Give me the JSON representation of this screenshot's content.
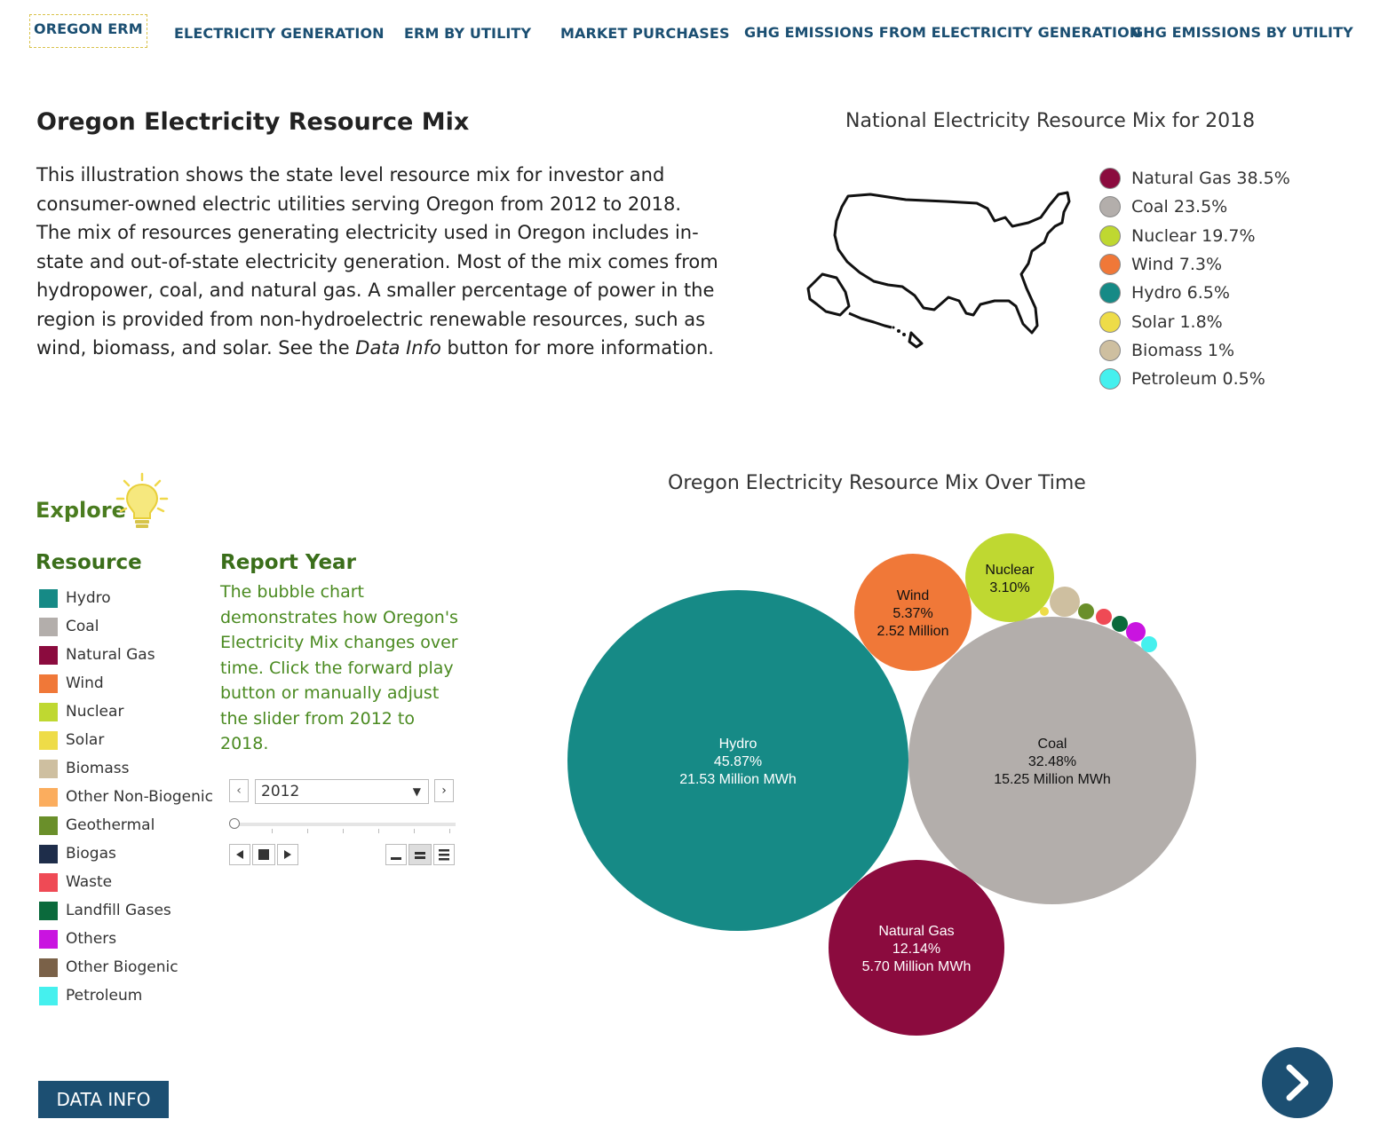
{
  "nav": {
    "tabs": [
      {
        "label": "OREGON ERM"
      },
      {
        "label": "ELECTRICITY GENERATION"
      },
      {
        "label": "ERM BY UTILITY"
      },
      {
        "label": "MARKET PURCHASES"
      },
      {
        "label": "GHG EMISSIONS FROM ELECTRICITY GENERATION"
      },
      {
        "label": "GHG EMISSIONS BY UTILITY"
      }
    ]
  },
  "intro": {
    "title": "Oregon Electricity Resource Mix",
    "text_before": "This illustration shows the state level resource mix for investor and consumer-owned electric utilities serving Oregon from 2012 to 2018. The mix of resources generating electricity used in Oregon includes in-state and out-of-state electricity generation. Most of the mix comes from hydropower, coal, and natural gas. A smaller percentage of power in the region is provided from non-hydroelectric renewable resources, such as wind, biomass, and solar. See the ",
    "text_em": "Data Info",
    "text_after": " button for more information."
  },
  "national": {
    "title": "National Electricity Resource Mix for 2018",
    "items": [
      {
        "label": "Natural Gas 38.5%",
        "color": "#8b0b3e"
      },
      {
        "label": "Coal 23.5%",
        "color": "#b3aeab"
      },
      {
        "label": "Nuclear 19.7%",
        "color": "#bfd831"
      },
      {
        "label": "Wind 7.3%",
        "color": "#f07838"
      },
      {
        "label": "Hydro 6.5%",
        "color": "#168a86"
      },
      {
        "label": "Solar 1.8%",
        "color": "#eedc48"
      },
      {
        "label": "Biomass 1%",
        "color": "#cebfa0"
      },
      {
        "label": "Petroleum 0.5%",
        "color": "#45f0ee"
      }
    ]
  },
  "explore": {
    "title": "Explore",
    "resource_title": "Resource",
    "resources": [
      {
        "label": "Hydro",
        "color": "#168a86"
      },
      {
        "label": "Coal",
        "color": "#b3aeab"
      },
      {
        "label": "Natural Gas",
        "color": "#8b0b3e"
      },
      {
        "label": "Wind",
        "color": "#f07838"
      },
      {
        "label": "Nuclear",
        "color": "#bfd831"
      },
      {
        "label": "Solar",
        "color": "#eedc48"
      },
      {
        "label": "Biomass",
        "color": "#cebfa0"
      },
      {
        "label": "Other Non-Biogenic",
        "color": "#fbad5e"
      },
      {
        "label": "Geothermal",
        "color": "#6a8f2a"
      },
      {
        "label": "Biogas",
        "color": "#1e2d4a"
      },
      {
        "label": "Waste",
        "color": "#ef4a55"
      },
      {
        "label": "Landfill Gases",
        "color": "#0b6a3c"
      },
      {
        "label": "Others",
        "color": "#c914e0"
      },
      {
        "label": "Other Biogenic",
        "color": "#7a6148"
      },
      {
        "label": "Petroleum",
        "color": "#45f0ee"
      }
    ],
    "report_year_title": "Report Year",
    "report_year_text": "The bubble chart demonstrates how Oregon's Electricity Mix changes over time. Click the forward play button or manually adjust the slider from 2012 to 2018.",
    "selected_year": "2012"
  },
  "chart_data": {
    "type": "bubble",
    "title": "Oregon Electricity Resource Mix Over Time",
    "year": "2012",
    "series": [
      {
        "name": "Hydro",
        "percent": "45.87%",
        "amount": "21.53 Million MWh",
        "color": "#168a86",
        "text_color": "#ffffff"
      },
      {
        "name": "Coal",
        "percent": "32.48%",
        "amount": "15.25 Million MWh",
        "color": "#b3aeab",
        "text_color": "#111111"
      },
      {
        "name": "Natural Gas",
        "percent": "12.14%",
        "amount": "5.70 Million MWh",
        "color": "#8b0b3e",
        "text_color": "#ffffff"
      },
      {
        "name": "Wind",
        "percent": "5.37%",
        "amount": "2.52 Million",
        "color": "#f07838",
        "text_color": "#111111"
      },
      {
        "name": "Nuclear",
        "percent": "3.10%",
        "amount": "",
        "color": "#bfd831",
        "text_color": "#111111"
      },
      {
        "name": "Biomass",
        "percent": "",
        "amount": "",
        "color": "#cebfa0"
      },
      {
        "name": "Solar",
        "percent": "",
        "amount": "",
        "color": "#eedc48"
      },
      {
        "name": "Geothermal",
        "percent": "",
        "amount": "",
        "color": "#6a8f2a"
      },
      {
        "name": "Waste",
        "percent": "",
        "amount": "",
        "color": "#ef4a55"
      },
      {
        "name": "Landfill Gases",
        "percent": "",
        "amount": "",
        "color": "#0b6a3c"
      },
      {
        "name": "Others",
        "percent": "",
        "amount": "",
        "color": "#c914e0"
      },
      {
        "name": "Petroleum",
        "percent": "",
        "amount": "",
        "color": "#45f0ee"
      }
    ]
  },
  "footer": {
    "data_info_label": "DATA INFO"
  }
}
